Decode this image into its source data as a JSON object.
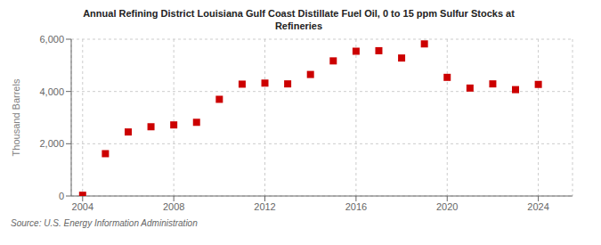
{
  "chart_data": {
    "type": "scatter",
    "title": "Annual Refining District Louisiana Gulf Coast Distillate Fuel Oil, 0 to 15 ppm Sulfur Stocks at\nRefineries",
    "ylabel": "Thousand Barrels",
    "annotations": [
      "Source: U.S. Energy Information Administration"
    ],
    "x": [
      2004,
      2005,
      2006,
      2007,
      2008,
      2009,
      2010,
      2011,
      2012,
      2013,
      2014,
      2015,
      2016,
      2017,
      2018,
      2019,
      2020,
      2021,
      2022,
      2023,
      2024
    ],
    "values": [
      28,
      1620,
      2450,
      2650,
      2720,
      2820,
      3700,
      4280,
      4320,
      4290,
      4650,
      5170,
      5540,
      5560,
      5280,
      5820,
      4540,
      4130,
      4290,
      4070,
      4270
    ],
    "color": "#cc0000",
    "marker": "square",
    "xlim": [
      2003.5,
      2025.5
    ],
    "ylim": [
      0,
      6000
    ],
    "xticks": [
      2004,
      2008,
      2012,
      2016,
      2020,
      2024
    ],
    "yticks": [
      0,
      {
        "value": 2000,
        "label": "2,000"
      },
      {
        "value": 4000,
        "label": "4,000"
      },
      {
        "value": 6000,
        "label": "6,000"
      }
    ],
    "grid": true
  }
}
